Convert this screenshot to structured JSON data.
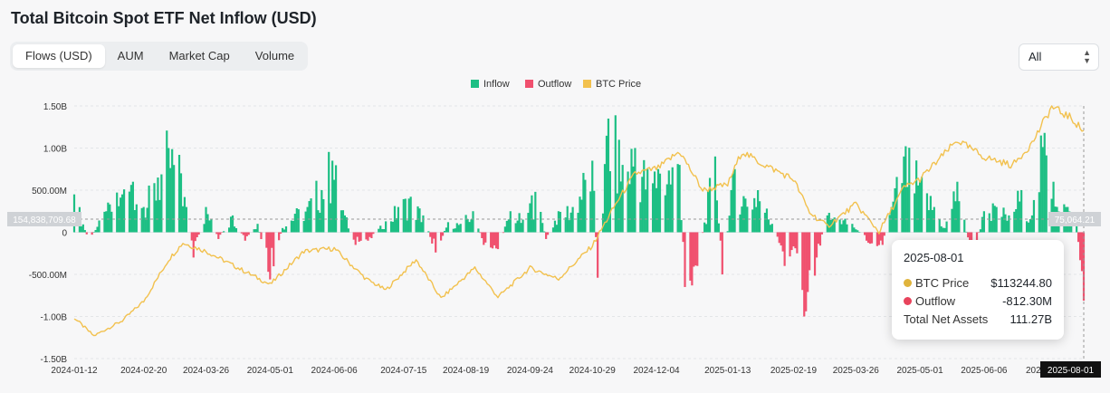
{
  "title": "Total Bitcoin Spot ETF Net Inflow (USD)",
  "tabs": [
    {
      "label": "Flows (USD)",
      "active": true
    },
    {
      "label": "AUM",
      "active": false
    },
    {
      "label": "Market Cap",
      "active": false
    },
    {
      "label": "Volume",
      "active": false
    }
  ],
  "range_select": {
    "value": "All"
  },
  "colors": {
    "inflow": "#1dbf84",
    "outflow": "#f0506e",
    "price": "#f2c14e",
    "grid": "#e3e5e8",
    "axis_text": "#333333"
  },
  "chart_data": {
    "type": "bar",
    "title": "Total Bitcoin Spot ETF Net Inflow (USD)",
    "legend": [
      "Inflow",
      "Outflow",
      "BTC Price"
    ],
    "legend_position": "top-center",
    "grid": true,
    "y_ticks": [
      "1.50B",
      "1.00B",
      "500.00M",
      "0",
      "-500.00M",
      "-1.00B",
      "-1.50B"
    ],
    "ylim": [
      -1500000000,
      1500000000
    ],
    "x_tick_labels": [
      "2024-01-12",
      "2024-02-20",
      "2024-03-26",
      "2024-05-01",
      "2024-06-06",
      "2024-07-15",
      "2024-08-19",
      "2024-09-24",
      "2024-10-29",
      "2024-12-04",
      "2025-01-13",
      "2025-02-19",
      "2025-03-26",
      "2025-05-01",
      "2025-06-06"
    ],
    "last_x_label_partial": "202",
    "crosshair_x_label": "2025-08-01",
    "crosshair_left_value": "154,838,709.68",
    "crosshair_right_value": "75,064.21",
    "flow_series": {
      "name": "Net Flow",
      "start": "2024-01-12",
      "end": "2025-08-01",
      "anchors": [
        [
          "2024-01-12",
          450000000
        ],
        [
          "2024-01-20",
          -100000000
        ],
        [
          "2024-01-30",
          250000000
        ],
        [
          "2024-02-08",
          450000000
        ],
        [
          "2024-02-14",
          600000000
        ],
        [
          "2024-02-20",
          300000000
        ],
        [
          "2024-02-28",
          650000000
        ],
        [
          "2024-03-05",
          1000000000
        ],
        [
          "2024-03-12",
          700000000
        ],
        [
          "2024-03-19",
          -300000000
        ],
        [
          "2024-03-26",
          300000000
        ],
        [
          "2024-04-02",
          -80000000
        ],
        [
          "2024-04-10",
          200000000
        ],
        [
          "2024-04-17",
          -100000000
        ],
        [
          "2024-04-24",
          100000000
        ],
        [
          "2024-05-01",
          -560000000
        ],
        [
          "2024-05-08",
          50000000
        ],
        [
          "2024-05-15",
          220000000
        ],
        [
          "2024-05-22",
          300000000
        ],
        [
          "2024-06-05",
          850000000
        ],
        [
          "2024-06-12",
          200000000
        ],
        [
          "2024-06-18",
          -150000000
        ],
        [
          "2024-06-25",
          -100000000
        ],
        [
          "2024-07-05",
          130000000
        ],
        [
          "2024-07-12",
          300000000
        ],
        [
          "2024-07-18",
          400000000
        ],
        [
          "2024-07-26",
          200000000
        ],
        [
          "2024-08-02",
          -240000000
        ],
        [
          "2024-08-09",
          120000000
        ],
        [
          "2024-08-16",
          100000000
        ],
        [
          "2024-08-23",
          250000000
        ],
        [
          "2024-08-29",
          -150000000
        ],
        [
          "2024-09-06",
          -200000000
        ],
        [
          "2024-09-13",
          250000000
        ],
        [
          "2024-09-20",
          150000000
        ],
        [
          "2024-09-27",
          480000000
        ],
        [
          "2024-10-03",
          -80000000
        ],
        [
          "2024-10-10",
          250000000
        ],
        [
          "2024-10-18",
          300000000
        ],
        [
          "2024-10-29",
          850000000
        ],
        [
          "2024-11-01",
          -540000000
        ],
        [
          "2024-11-07",
          1350000000
        ],
        [
          "2024-11-15",
          800000000
        ],
        [
          "2024-11-22",
          1000000000
        ],
        [
          "2024-11-30",
          600000000
        ],
        [
          "2024-12-05",
          750000000
        ],
        [
          "2024-12-17",
          800000000
        ],
        [
          "2024-12-20",
          -650000000
        ],
        [
          "2024-12-27",
          -400000000
        ],
        [
          "2025-01-06",
          900000000
        ],
        [
          "2025-01-10",
          -500000000
        ],
        [
          "2025-01-17",
          750000000
        ],
        [
          "2025-01-23",
          400000000
        ],
        [
          "2025-01-30",
          500000000
        ],
        [
          "2025-02-07",
          100000000
        ],
        [
          "2025-02-14",
          -400000000
        ],
        [
          "2025-02-21",
          -250000000
        ],
        [
          "2025-02-25",
          -1000000000
        ],
        [
          "2025-03-04",
          -300000000
        ],
        [
          "2025-03-10",
          200000000
        ],
        [
          "2025-03-17",
          150000000
        ],
        [
          "2025-03-24",
          100000000
        ],
        [
          "2025-04-01",
          -100000000
        ],
        [
          "2025-04-10",
          -150000000
        ],
        [
          "2025-04-22",
          900000000
        ],
        [
          "2025-05-01",
          600000000
        ],
        [
          "2025-05-09",
          300000000
        ],
        [
          "2025-05-15",
          50000000
        ],
        [
          "2025-05-22",
          600000000
        ],
        [
          "2025-05-30",
          -350000000
        ],
        [
          "2025-06-06",
          250000000
        ],
        [
          "2025-06-13",
          300000000
        ],
        [
          "2025-06-20",
          200000000
        ],
        [
          "2025-06-27",
          500000000
        ],
        [
          "2025-07-03",
          200000000
        ],
        [
          "2025-07-10",
          1180000000
        ],
        [
          "2025-07-15",
          600000000
        ],
        [
          "2025-07-22",
          300000000
        ],
        [
          "2025-07-28",
          100000000
        ],
        [
          "2025-08-01",
          -812300000
        ]
      ]
    },
    "price_series": {
      "name": "BTC Price",
      "anchors": [
        [
          "2024-01-12",
          46000
        ],
        [
          "2024-01-23",
          39500
        ],
        [
          "2024-02-08",
          45000
        ],
        [
          "2024-02-20",
          52000
        ],
        [
          "2024-03-05",
          67000
        ],
        [
          "2024-03-13",
          73000
        ],
        [
          "2024-03-26",
          70000
        ],
        [
          "2024-04-13",
          64000
        ],
        [
          "2024-05-01",
          58000
        ],
        [
          "2024-05-20",
          70000
        ],
        [
          "2024-06-06",
          71000
        ],
        [
          "2024-06-24",
          60000
        ],
        [
          "2024-07-05",
          56000
        ],
        [
          "2024-07-22",
          67000
        ],
        [
          "2024-08-05",
          53000
        ],
        [
          "2024-08-24",
          64000
        ],
        [
          "2024-09-06",
          53500
        ],
        [
          "2024-09-24",
          64000
        ],
        [
          "2024-10-10",
          60000
        ],
        [
          "2024-10-29",
          72000
        ],
        [
          "2024-11-12",
          88000
        ],
        [
          "2024-11-22",
          98000
        ],
        [
          "2024-12-05",
          100000
        ],
        [
          "2024-12-17",
          106000
        ],
        [
          "2024-12-30",
          92000
        ],
        [
          "2025-01-13",
          94000
        ],
        [
          "2025-01-21",
          106000
        ],
        [
          "2025-01-31",
          102000
        ],
        [
          "2025-02-19",
          96000
        ],
        [
          "2025-02-28",
          84000
        ],
        [
          "2025-03-10",
          79000
        ],
        [
          "2025-03-26",
          87000
        ],
        [
          "2025-04-08",
          77000
        ],
        [
          "2025-04-22",
          93000
        ],
        [
          "2025-05-01",
          96000
        ],
        [
          "2025-05-22",
          110000
        ],
        [
          "2025-06-06",
          104000
        ],
        [
          "2025-06-22",
          101000
        ],
        [
          "2025-07-03",
          109000
        ],
        [
          "2025-07-14",
          122000
        ],
        [
          "2025-07-25",
          118000
        ],
        [
          "2025-08-01",
          113244.8
        ]
      ]
    }
  },
  "tooltip": {
    "date": "2025-08-01",
    "rows": [
      {
        "label": "BTC Price",
        "value": "$113244.80",
        "color": "#e0b43c"
      },
      {
        "label": "Outflow",
        "value": "-812.30M",
        "color": "#e8435c"
      },
      {
        "label": "Total Net Assets",
        "value": "111.27B",
        "color": ""
      }
    ]
  }
}
